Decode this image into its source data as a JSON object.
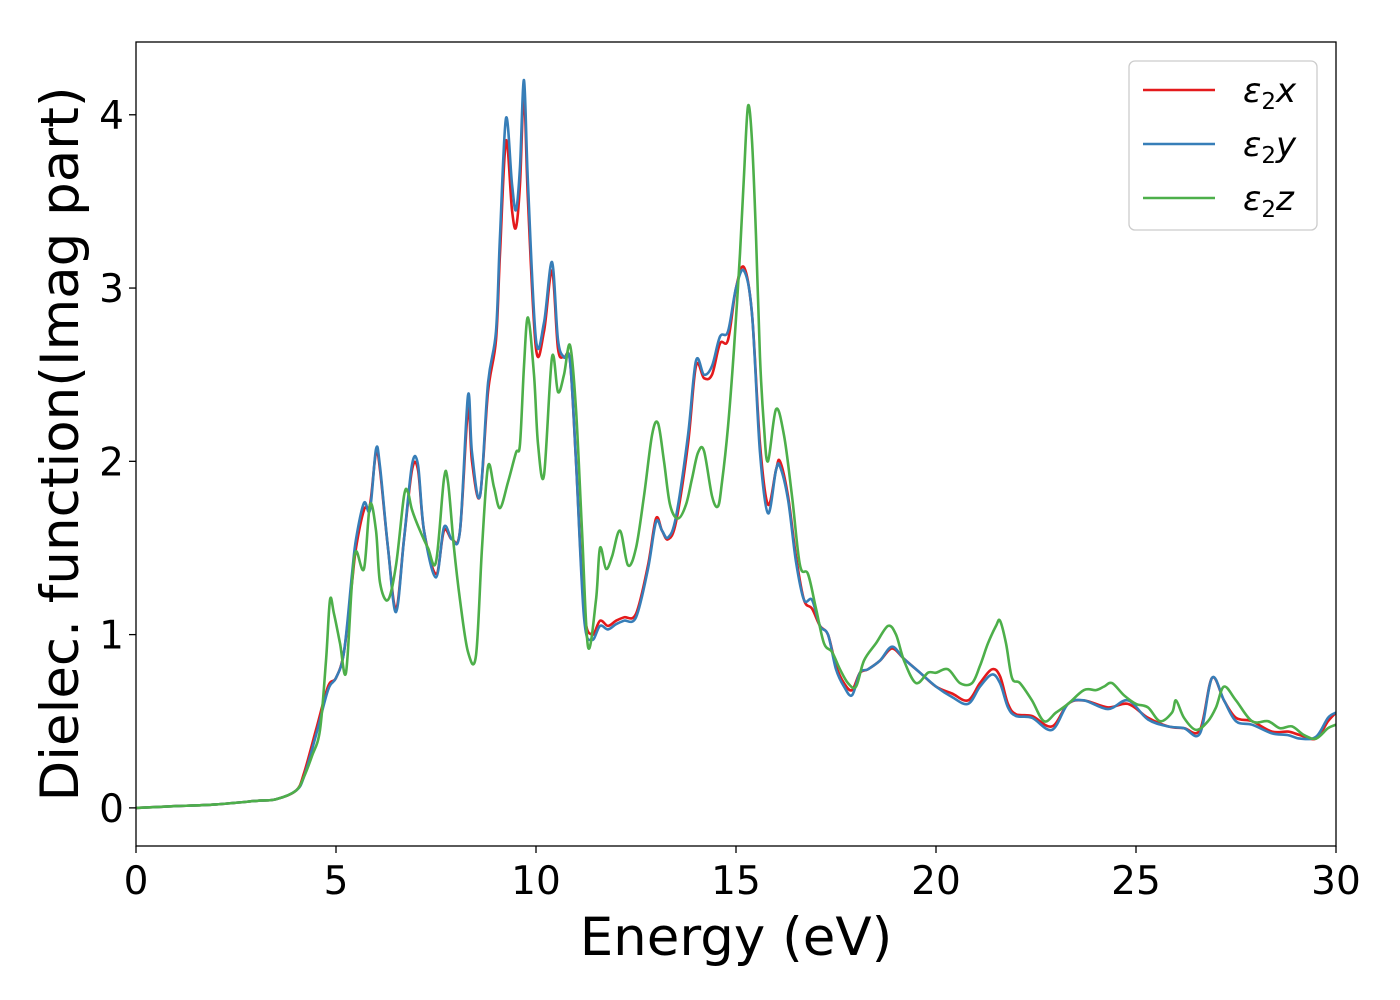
{
  "chart_data": {
    "type": "line",
    "title": "",
    "xlabel": "Energy (eV)",
    "ylabel": "Dielec. function(Imag part)",
    "xlim": [
      0,
      30
    ],
    "ylim": [
      -0.22,
      4.42
    ],
    "xticks": [
      0,
      5,
      10,
      15,
      20,
      25,
      30
    ],
    "yticks": [
      0,
      1,
      2,
      3,
      4
    ],
    "grid": false,
    "legend_position": "top-right",
    "series": [
      {
        "name": "ε₂x",
        "legend_base": "ε",
        "legend_sub": "2",
        "legend_suffix": "x",
        "color": "#e41a1c",
        "x": [
          0,
          1,
          2,
          3,
          3.5,
          4,
          4.2,
          4.5,
          4.8,
          5,
          5.2,
          5.4,
          5.5,
          5.7,
          5.85,
          6,
          6.1,
          6.3,
          6.5,
          6.7,
          6.9,
          7.05,
          7.2,
          7.5,
          7.7,
          7.9,
          8.1,
          8.3,
          8.4,
          8.6,
          8.8,
          9,
          9.1,
          9.25,
          9.4,
          9.5,
          9.6,
          9.7,
          9.8,
          10,
          10.2,
          10.4,
          10.55,
          10.7,
          10.85,
          11,
          11.2,
          11.4,
          11.6,
          11.8,
          12,
          12.2,
          12.5,
          12.8,
          13,
          13.15,
          13.3,
          13.5,
          13.8,
          14,
          14.2,
          14.4,
          14.6,
          14.8,
          15,
          15.2,
          15.4,
          15.6,
          15.8,
          16,
          16.1,
          16.3,
          16.5,
          16.7,
          16.9,
          17.1,
          17.3,
          17.5,
          17.7,
          17.9,
          18.1,
          18.3,
          18.6,
          18.9,
          19.2,
          19.6,
          20,
          20.4,
          20.8,
          21.1,
          21.4,
          21.6,
          21.8,
          22,
          22.4,
          22.9,
          23.3,
          23.7,
          24.3,
          24.8,
          25.3,
          25.8,
          26.2,
          26.6,
          26.9,
          27.2,
          27.5,
          27.9,
          28.4,
          28.8,
          29.1,
          29.5,
          29.8,
          30
        ],
        "y": [
          0,
          0.01,
          0.02,
          0.04,
          0.05,
          0.1,
          0.2,
          0.45,
          0.7,
          0.75,
          0.9,
          1.3,
          1.5,
          1.72,
          1.75,
          2.05,
          1.95,
          1.5,
          1.15,
          1.55,
          1.95,
          1.95,
          1.6,
          1.35,
          1.6,
          1.55,
          1.6,
          2.3,
          2.0,
          1.8,
          2.4,
          2.7,
          3.2,
          3.85,
          3.45,
          3.35,
          3.6,
          4.12,
          3.5,
          2.65,
          2.75,
          3.1,
          2.65,
          2.6,
          2.58,
          2.0,
          1.15,
          1.0,
          1.08,
          1.05,
          1.08,
          1.1,
          1.12,
          1.4,
          1.67,
          1.6,
          1.55,
          1.65,
          2.1,
          2.55,
          2.48,
          2.5,
          2.68,
          2.7,
          3.0,
          3.12,
          2.85,
          2.1,
          1.75,
          1.95,
          2.0,
          1.8,
          1.45,
          1.2,
          1.15,
          1.05,
          1.0,
          0.82,
          0.72,
          0.68,
          0.78,
          0.8,
          0.85,
          0.92,
          0.86,
          0.78,
          0.7,
          0.66,
          0.62,
          0.72,
          0.8,
          0.76,
          0.6,
          0.54,
          0.53,
          0.47,
          0.6,
          0.62,
          0.58,
          0.6,
          0.52,
          0.47,
          0.46,
          0.45,
          0.75,
          0.62,
          0.52,
          0.5,
          0.44,
          0.44,
          0.42,
          0.4,
          0.5,
          0.55
        ]
      },
      {
        "name": "ε₂y",
        "legend_base": "ε",
        "legend_sub": "2",
        "legend_suffix": "y",
        "color": "#377eb8",
        "x": [
          0,
          1,
          2,
          3,
          3.5,
          4,
          4.2,
          4.5,
          4.8,
          5,
          5.2,
          5.4,
          5.5,
          5.7,
          5.85,
          6,
          6.1,
          6.3,
          6.5,
          6.7,
          6.9,
          7.05,
          7.2,
          7.5,
          7.7,
          7.9,
          8.1,
          8.3,
          8.4,
          8.6,
          8.8,
          9,
          9.1,
          9.25,
          9.4,
          9.5,
          9.6,
          9.7,
          9.8,
          10,
          10.2,
          10.4,
          10.55,
          10.7,
          10.85,
          11,
          11.2,
          11.4,
          11.6,
          11.8,
          12,
          12.2,
          12.5,
          12.8,
          13,
          13.15,
          13.3,
          13.5,
          13.8,
          14,
          14.2,
          14.4,
          14.6,
          14.8,
          15,
          15.2,
          15.4,
          15.6,
          15.8,
          16,
          16.1,
          16.3,
          16.5,
          16.7,
          16.9,
          17.1,
          17.3,
          17.5,
          17.7,
          17.9,
          18.1,
          18.3,
          18.6,
          18.9,
          19.2,
          19.6,
          20,
          20.4,
          20.8,
          21.1,
          21.4,
          21.6,
          21.8,
          22,
          22.4,
          22.9,
          23.3,
          23.7,
          24.3,
          24.8,
          25.3,
          25.8,
          26.2,
          26.6,
          26.9,
          27.2,
          27.5,
          27.9,
          28.4,
          28.8,
          29.1,
          29.5,
          29.8,
          30
        ],
        "y": [
          0,
          0.01,
          0.02,
          0.04,
          0.05,
          0.1,
          0.18,
          0.42,
          0.68,
          0.75,
          0.9,
          1.35,
          1.55,
          1.76,
          1.72,
          2.07,
          1.97,
          1.5,
          1.13,
          1.55,
          1.98,
          1.98,
          1.6,
          1.33,
          1.62,
          1.55,
          1.6,
          2.38,
          2.05,
          1.8,
          2.45,
          2.75,
          3.3,
          3.98,
          3.6,
          3.45,
          3.7,
          4.2,
          3.6,
          2.7,
          2.8,
          3.15,
          2.7,
          2.6,
          2.58,
          2.0,
          1.1,
          0.97,
          1.05,
          1.03,
          1.06,
          1.08,
          1.1,
          1.38,
          1.65,
          1.6,
          1.56,
          1.68,
          2.15,
          2.58,
          2.5,
          2.55,
          2.72,
          2.75,
          3.0,
          3.1,
          2.85,
          2.05,
          1.7,
          1.95,
          1.97,
          1.78,
          1.42,
          1.2,
          1.2,
          1.05,
          1.0,
          0.8,
          0.7,
          0.65,
          0.78,
          0.8,
          0.85,
          0.93,
          0.86,
          0.78,
          0.7,
          0.64,
          0.6,
          0.7,
          0.77,
          0.72,
          0.58,
          0.53,
          0.52,
          0.45,
          0.6,
          0.62,
          0.57,
          0.62,
          0.51,
          0.47,
          0.46,
          0.43,
          0.75,
          0.62,
          0.5,
          0.48,
          0.43,
          0.42,
          0.4,
          0.41,
          0.52,
          0.55
        ]
      },
      {
        "name": "ε₂z",
        "legend_base": "ε",
        "legend_sub": "2",
        "legend_suffix": "z",
        "color": "#4daf4a",
        "x": [
          0,
          1,
          2,
          3,
          3.5,
          4,
          4.2,
          4.4,
          4.6,
          4.75,
          4.85,
          4.95,
          5.1,
          5.25,
          5.4,
          5.5,
          5.7,
          5.85,
          6,
          6.1,
          6.3,
          6.5,
          6.7,
          6.8,
          6.9,
          7.1,
          7.3,
          7.5,
          7.7,
          7.8,
          7.95,
          8.1,
          8.3,
          8.5,
          8.65,
          8.8,
          8.95,
          9.1,
          9.3,
          9.5,
          9.6,
          9.7,
          9.8,
          9.95,
          10.05,
          10.2,
          10.4,
          10.55,
          10.7,
          10.85,
          11,
          11.15,
          11.3,
          11.5,
          11.6,
          11.75,
          11.9,
          12.1,
          12.3,
          12.5,
          12.7,
          12.9,
          13.05,
          13.2,
          13.35,
          13.55,
          13.75,
          13.9,
          14.05,
          14.2,
          14.4,
          14.55,
          14.65,
          14.8,
          14.95,
          15.1,
          15.2,
          15.3,
          15.4,
          15.5,
          15.6,
          15.7,
          15.8,
          16,
          16.2,
          16.4,
          16.6,
          16.8,
          17,
          17.2,
          17.4,
          17.6,
          17.8,
          18,
          18.2,
          18.5,
          18.8,
          19,
          19.2,
          19.5,
          19.8,
          20,
          20.3,
          20.6,
          20.9,
          21.1,
          21.3,
          21.5,
          21.6,
          21.75,
          21.9,
          22.1,
          22.4,
          22.7,
          23,
          23.3,
          23.7,
          24,
          24.2,
          24.4,
          24.7,
          25,
          25.3,
          25.6,
          25.9,
          26,
          26.2,
          26.5,
          26.8,
          27,
          27.2,
          27.5,
          27.9,
          28.3,
          28.6,
          28.9,
          29.2,
          29.5,
          29.8,
          30
        ],
        "y": [
          0,
          0.01,
          0.02,
          0.04,
          0.05,
          0.1,
          0.18,
          0.3,
          0.45,
          0.85,
          1.2,
          1.12,
          0.95,
          0.78,
          1.3,
          1.48,
          1.38,
          1.75,
          1.6,
          1.3,
          1.2,
          1.4,
          1.8,
          1.82,
          1.72,
          1.6,
          1.5,
          1.42,
          1.9,
          1.88,
          1.5,
          1.2,
          0.9,
          0.88,
          1.5,
          1.97,
          1.85,
          1.73,
          1.88,
          2.05,
          2.1,
          2.55,
          2.83,
          2.5,
          2.1,
          1.92,
          2.6,
          2.4,
          2.5,
          2.67,
          2.3,
          1.6,
          0.93,
          1.2,
          1.5,
          1.38,
          1.45,
          1.6,
          1.4,
          1.5,
          1.8,
          2.15,
          2.22,
          2.0,
          1.75,
          1.67,
          1.75,
          1.9,
          2.05,
          2.06,
          1.8,
          1.74,
          1.88,
          2.2,
          2.65,
          3.2,
          3.65,
          4.05,
          3.85,
          3.3,
          2.6,
          2.2,
          2.0,
          2.3,
          2.15,
          1.8,
          1.4,
          1.35,
          1.15,
          0.95,
          0.9,
          0.8,
          0.72,
          0.7,
          0.85,
          0.95,
          1.05,
          1.0,
          0.85,
          0.72,
          0.78,
          0.78,
          0.8,
          0.72,
          0.72,
          0.82,
          0.95,
          1.05,
          1.08,
          0.95,
          0.75,
          0.72,
          0.62,
          0.5,
          0.55,
          0.6,
          0.68,
          0.68,
          0.7,
          0.72,
          0.65,
          0.6,
          0.58,
          0.5,
          0.55,
          0.62,
          0.52,
          0.45,
          0.5,
          0.58,
          0.7,
          0.62,
          0.5,
          0.5,
          0.46,
          0.47,
          0.42,
          0.4,
          0.46,
          0.48
        ]
      }
    ]
  }
}
